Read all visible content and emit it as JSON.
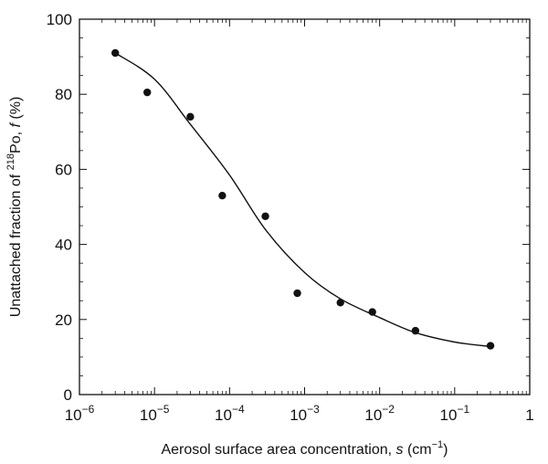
{
  "chart_data": {
    "type": "scatter",
    "x_scale": "log",
    "xlim": [
      1e-06,
      1
    ],
    "ylim": [
      0,
      100
    ],
    "grid": false,
    "x_ticks": [
      {
        "value": 1e-06,
        "base": "10",
        "exp": "−6"
      },
      {
        "value": 1e-05,
        "base": "10",
        "exp": "−5"
      },
      {
        "value": 0.0001,
        "base": "10",
        "exp": "−4"
      },
      {
        "value": 0.001,
        "base": "10",
        "exp": "−3"
      },
      {
        "value": 0.01,
        "base": "10",
        "exp": "−2"
      },
      {
        "value": 0.1,
        "base": "10",
        "exp": "−1"
      },
      {
        "value": 1,
        "base": "1",
        "exp": ""
      }
    ],
    "y_ticks": [
      0,
      20,
      40,
      60,
      80,
      100
    ],
    "xlabel": {
      "pre": "Aerosol surface area concentration, ",
      "var": "s",
      "unit_pre": " (cm",
      "unit_exp": "−1",
      "unit_post": ")"
    },
    "ylabel": {
      "pre": "Unattached fraction of ",
      "sup": "218",
      "mid": "Po, ",
      "var": "f",
      "post": " (%)"
    },
    "series": [
      {
        "kind": "points",
        "x": [
          3e-06,
          8e-06,
          3e-05,
          8e-05,
          0.0003,
          0.0008,
          0.003,
          0.008,
          0.03,
          0.3
        ],
        "y": [
          91,
          80.5,
          74,
          53,
          47.5,
          27,
          24.5,
          22,
          17,
          13
        ]
      },
      {
        "kind": "curve",
        "x": [
          3e-06,
          1e-05,
          3e-05,
          0.0001,
          0.0003,
          0.001,
          0.003,
          0.01,
          0.03,
          0.1,
          0.3
        ],
        "y": [
          91,
          84,
          72,
          58.5,
          44,
          32.5,
          25.5,
          20.5,
          16.5,
          14,
          12.8
        ]
      }
    ]
  }
}
